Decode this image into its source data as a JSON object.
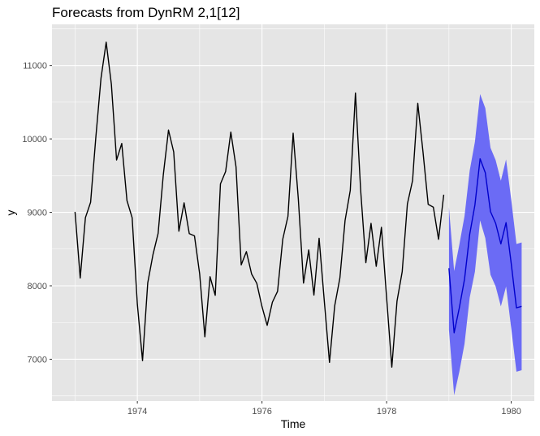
{
  "chart_data": {
    "type": "line",
    "title": "Forecasts from DynRM 2,1[12]",
    "xlabel": "Time",
    "ylabel": "y",
    "xlim": [
      1972.63,
      1980.37
    ],
    "ylim": [
      6430,
      11560
    ],
    "x_ticks": [
      1974,
      1976,
      1978,
      1980
    ],
    "y_ticks": [
      7000,
      8000,
      9000,
      10000,
      11000
    ],
    "x_minor_ticks": [
      1973,
      1975,
      1977,
      1979
    ],
    "y_minor_ticks": [
      6500,
      7500,
      8500,
      9500,
      10500,
      11500
    ],
    "grid": true,
    "legend": "none",
    "colors": {
      "panel": "#e5e5e5",
      "grid": "#ffffff",
      "observed": "#000000",
      "forecast": "#0000cc",
      "interval": "#6b6bf5"
    },
    "series": [
      {
        "start": 1973,
        "step": 0.0833333,
        "values": [
          9007,
          8106,
          8928,
          9137,
          10017,
          10826,
          11317,
          10744,
          9713,
          9938,
          9161,
          8927,
          7750,
          6981,
          8038,
          8422,
          8714,
          9512,
          10120,
          9823,
          8743,
          9129,
          8710,
          8680,
          8162,
          7306,
          8124,
          7870,
          9387,
          9556,
          10093,
          9620,
          8285,
          8466,
          8160,
          8034,
          7717,
          7461,
          7776,
          7925,
          8634,
          8945,
          10078,
          9179,
          8037,
          8488,
          7874,
          8647,
          7792,
          6957,
          7726,
          8106,
          8890,
          9299,
          10625,
          9302,
          8314,
          8850,
          8265,
          8796,
          7836,
          6892,
          7791,
          8192,
          9115,
          9434,
          10484,
          9827,
          9110,
          9070,
          8633,
          9240
        ]
      },
      {
        "type": "forecast",
        "start": 1979,
        "step": 0.0833333,
        "values": [
          8240,
          7360,
          7700,
          8090,
          8700,
          9100,
          9730,
          9540,
          9010,
          8850,
          8570,
          8860,
          8300,
          7700,
          7720
        ],
        "lower": [
          7400,
          6510,
          6830,
          7210,
          7840,
          8190,
          8890,
          8650,
          8150,
          7990,
          7720,
          7990,
          7420,
          6830,
          6850
        ],
        "upper": [
          9070,
          8200,
          8560,
          8950,
          9570,
          9960,
          10610,
          10420,
          9880,
          9710,
          9430,
          9720,
          9170,
          8570,
          8590
        ]
      }
    ]
  }
}
